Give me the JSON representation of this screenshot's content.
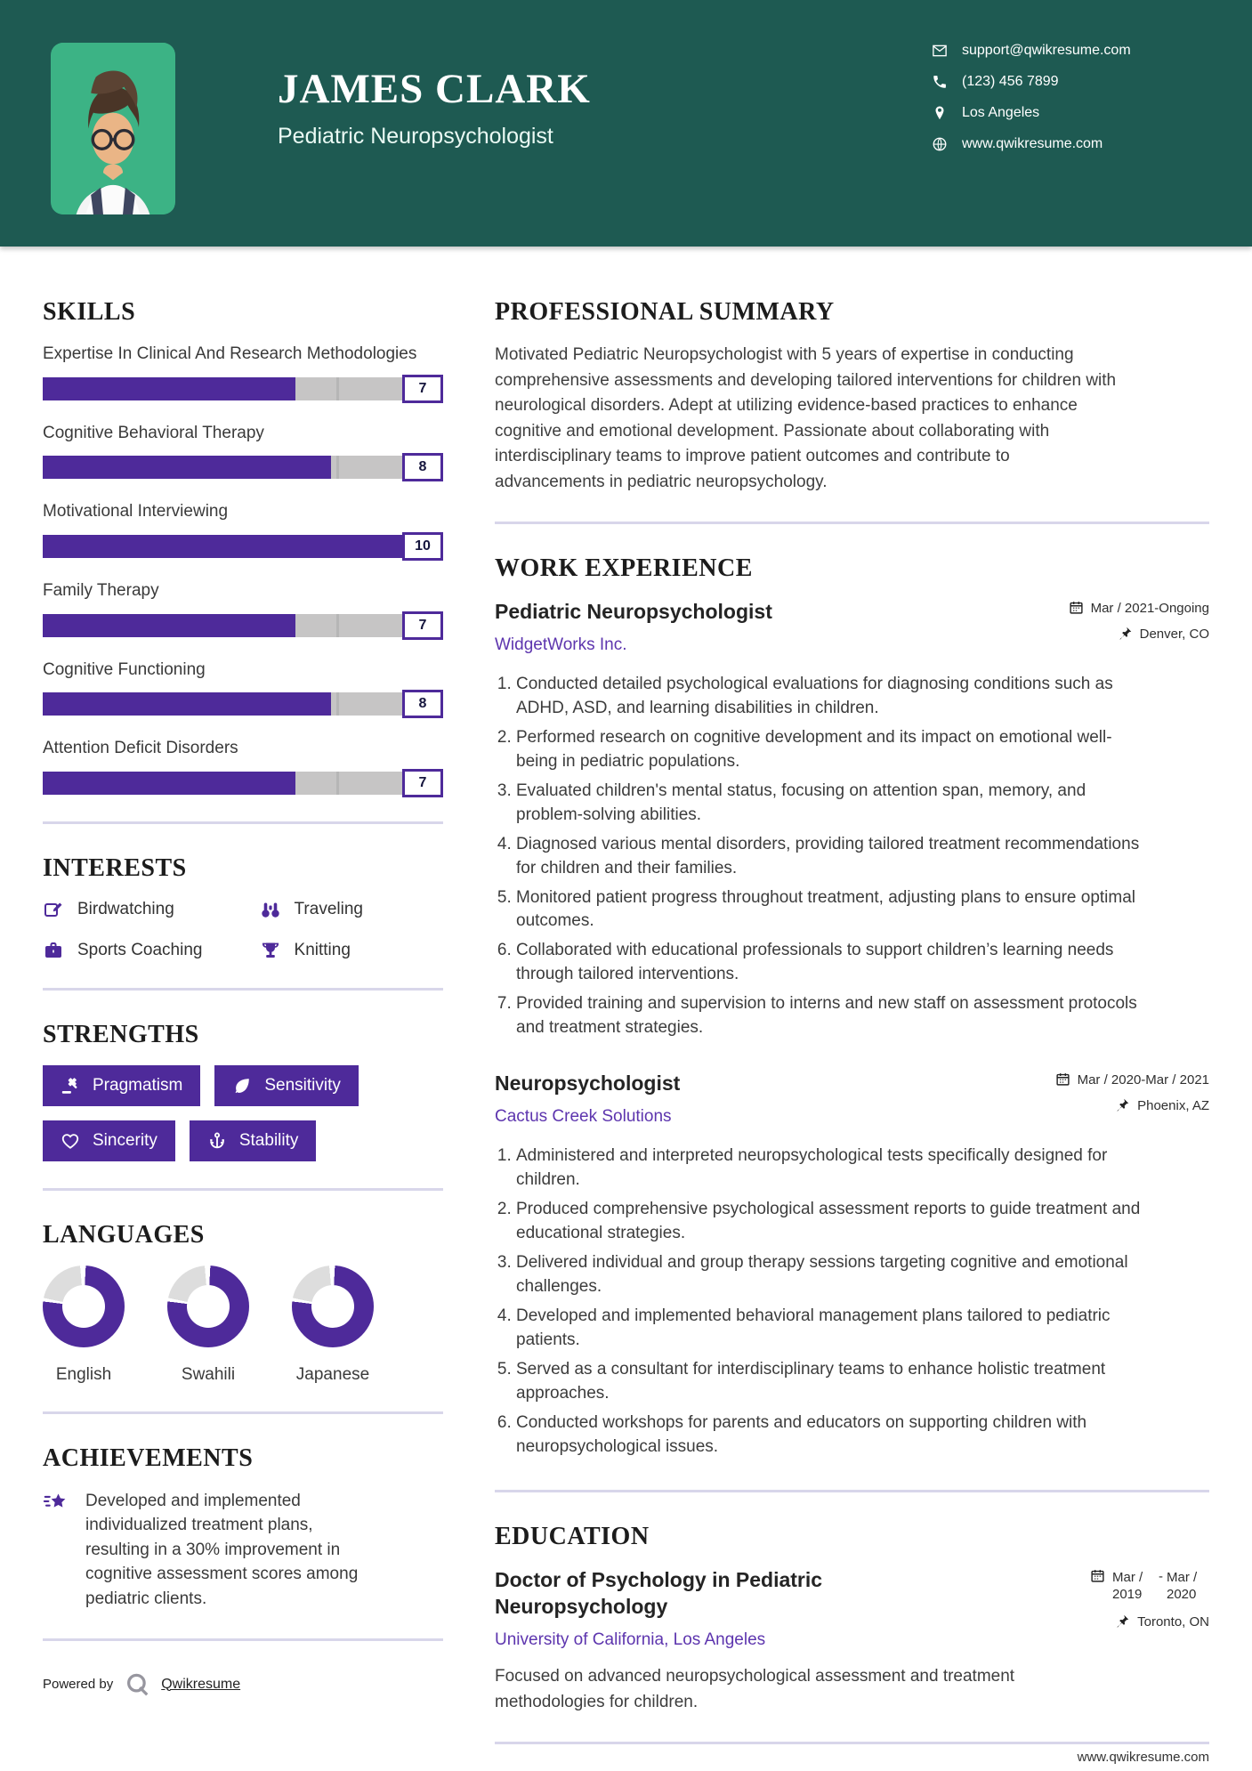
{
  "colors": {
    "accent": "#4E2A9A",
    "header_bg": "#1E5A52",
    "link": "#5D35AE",
    "photo_bg": "#3CB385"
  },
  "header": {
    "name": "JAMES CLARK",
    "title": "Pediatric Neuropsychologist",
    "contacts": [
      {
        "icon": "email-icon",
        "text": "support@qwikresume.com",
        "interactable": true
      },
      {
        "icon": "phone-icon",
        "text": "(123) 456 7899",
        "interactable": false
      },
      {
        "icon": "location-pin-icon",
        "text": "Los Angeles",
        "interactable": false
      },
      {
        "icon": "globe-icon",
        "text": "www.qwikresume.com",
        "interactable": true
      }
    ]
  },
  "skills": {
    "heading": "SKILLS",
    "max": 10,
    "items": [
      {
        "label": "Expertise In Clinical And Research Methodologies",
        "value": 7
      },
      {
        "label": "Cognitive Behavioral Therapy",
        "value": 8
      },
      {
        "label": "Motivational Interviewing",
        "value": 10
      },
      {
        "label": "Family Therapy",
        "value": 7
      },
      {
        "label": "Cognitive Functioning",
        "value": 8
      },
      {
        "label": "Attention Deficit Disorders",
        "value": 7
      }
    ]
  },
  "interests": {
    "heading": "INTERESTS",
    "items": [
      {
        "icon": "edit-icon",
        "label": "Birdwatching"
      },
      {
        "icon": "binoculars-icon",
        "label": "Traveling"
      },
      {
        "icon": "briefcase-icon",
        "label": "Sports Coaching"
      },
      {
        "icon": "trophy-icon",
        "label": "Knitting"
      }
    ]
  },
  "strengths": {
    "heading": "STRENGTHS",
    "items": [
      {
        "icon": "gavel-icon",
        "label": "Pragmatism"
      },
      {
        "icon": "leaf-icon",
        "label": "Sensitivity"
      },
      {
        "icon": "heart-icon",
        "label": "Sincerity"
      },
      {
        "icon": "anchor-icon",
        "label": "Stability"
      }
    ]
  },
  "languages": {
    "heading": "LANGUAGES",
    "items": [
      {
        "label": "English",
        "percent": 77
      },
      {
        "label": "Swahili",
        "percent": 77
      },
      {
        "label": "Japanese",
        "percent": 77
      }
    ]
  },
  "achievements": {
    "heading": "ACHIEVEMENTS",
    "items": [
      {
        "icon": "shooting-star-icon",
        "text": "Developed and implemented individualized treatment plans, resulting in a 30% improvement in cognitive assessment scores among pediatric clients."
      }
    ]
  },
  "summary": {
    "heading": "PROFESSIONAL SUMMARY",
    "text": "Motivated Pediatric Neuropsychologist with 5 years of expertise in conducting comprehensive assessments and developing tailored interventions for children with neurological disorders. Adept at utilizing evidence-based practices to enhance cognitive and emotional development. Passionate about collaborating with interdisciplinary teams to improve patient outcomes and contribute to advancements in pediatric neuropsychology."
  },
  "work": {
    "heading": "WORK EXPERIENCE",
    "jobs": [
      {
        "title": "Pediatric Neuropsychologist",
        "company": "WidgetWorks Inc.",
        "date": "Mar / 2021-Ongoing",
        "location": "Denver, CO",
        "bullets": [
          "Conducted detailed psychological evaluations for diagnosing conditions such as ADHD, ASD, and learning disabilities in children.",
          "Performed research on cognitive development and its impact on emotional well-being in pediatric populations.",
          "Evaluated children's mental status, focusing on attention span, memory, and problem-solving abilities.",
          "Diagnosed various mental disorders, providing tailored treatment recommendations for children and their families.",
          "Monitored patient progress throughout treatment, adjusting plans to ensure optimal outcomes.",
          "Collaborated with educational professionals to support children’s learning needs through tailored interventions.",
          "Provided training and supervision to interns and new staff on assessment protocols and treatment strategies."
        ]
      },
      {
        "title": "Neuropsychologist",
        "company": "Cactus Creek Solutions",
        "date": "Mar / 2020-Mar / 2021",
        "location": "Phoenix, AZ",
        "bullets": [
          "Administered and interpreted neuropsychological tests specifically designed for children.",
          "Produced comprehensive psychological assessment reports to guide treatment and educational strategies.",
          "Delivered individual and group therapy sessions targeting cognitive and emotional challenges.",
          "Developed and implemented behavioral management plans tailored to pediatric patients.",
          "Served as a consultant for interdisciplinary teams to enhance holistic treatment approaches.",
          "Conducted workshops for parents and educators on supporting children with neuropsychological issues."
        ]
      }
    ]
  },
  "education": {
    "heading": "EDUCATION",
    "degree": "Doctor of Psychology in Pediatric Neuropsychology",
    "school": "University of California, Los Angeles",
    "date_start": "Mar / 2019",
    "date_separator": "-",
    "date_end": "Mar / 2020",
    "location": "Toronto, ON",
    "description": "Focused on advanced neuropsychological assessment and treatment methodologies for children."
  },
  "footer": {
    "powered_by": "Powered by",
    "brand": "Qwikresume",
    "site": "www.qwikresume.com"
  }
}
